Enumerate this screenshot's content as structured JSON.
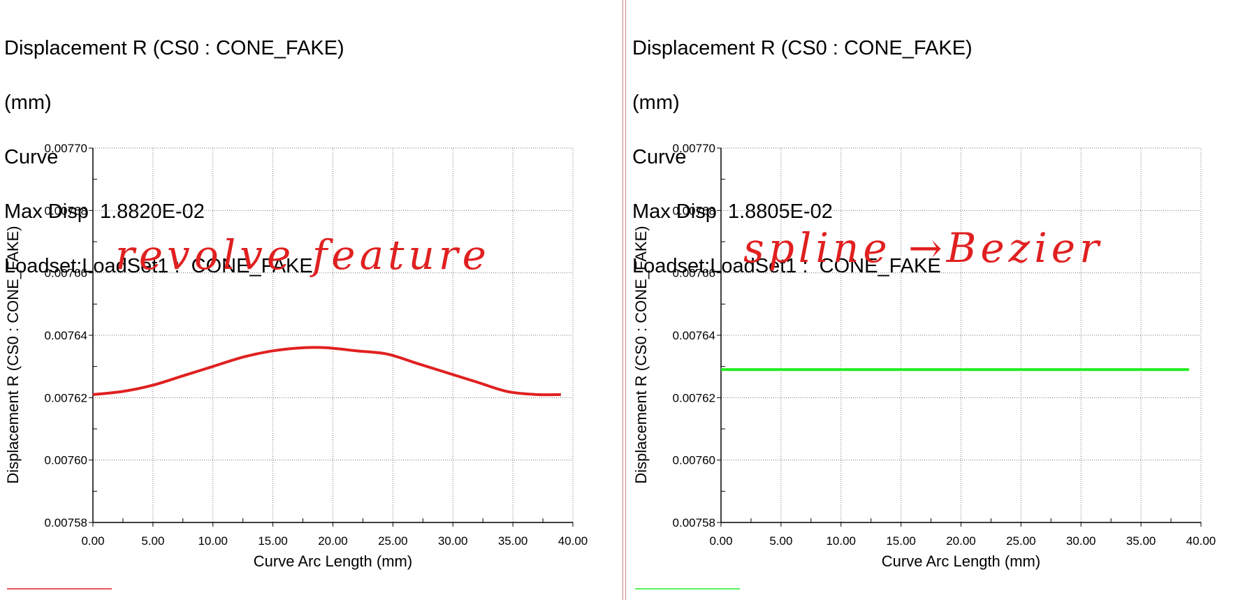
{
  "charts": [
    {
      "header": {
        "line1": "Displacement R (CS0 : CONE_FAKE)",
        "line2": "(mm)",
        "line3": "Curve",
        "line4": "Max Disp  1.8820E-02",
        "line5": "Loadset:LoadSet1 :  CONE_FAKE"
      },
      "annotation": "revolve feature",
      "series_color": "#e02020",
      "legend_swatch_color": "#e02020"
    },
    {
      "header": {
        "line1": "Displacement R (CS0 : CONE_FAKE)",
        "line2": "(mm)",
        "line3": "Curve",
        "line4": "Max Disp  1.8805E-02",
        "line5": "Loadset:LoadSet1 :  CONE_FAKE"
      },
      "annotation": "spline →Bezier",
      "series_color": "#22ee22",
      "legend_swatch_color": "#22ee22"
    }
  ],
  "chart_data": [
    {
      "type": "line",
      "xlabel": "Curve Arc Length (mm)",
      "ylabel": "Displacement R (CS0 : CONE_FAKE)",
      "xlim": [
        0,
        40
      ],
      "ylim": [
        0.00758,
        0.0077
      ],
      "xticks": [
        "0.00",
        "5.00",
        "10.00",
        "15.00",
        "20.00",
        "25.00",
        "30.00",
        "35.00",
        "40.00"
      ],
      "yticks": [
        "0.00758",
        "0.00760",
        "0.00762",
        "0.00764",
        "0.00766",
        "0.00768",
        "0.00770"
      ],
      "grid": true,
      "series": [
        {
          "x": [
            0,
            2.5,
            5,
            7.5,
            10,
            12.5,
            15,
            17.5,
            19.5,
            22,
            24.5,
            27,
            29.5,
            32,
            34.5,
            37,
            39
          ],
          "y": [
            0.007621,
            0.007622,
            0.007624,
            0.007627,
            0.00763,
            0.007633,
            0.007635,
            0.007636,
            0.007636,
            0.007635,
            0.007634,
            0.007631,
            0.007628,
            0.007625,
            0.007622,
            0.007621,
            0.007621
          ]
        }
      ]
    },
    {
      "type": "line",
      "xlabel": "Curve Arc Length (mm)",
      "ylabel": "Displacement R (CS0 : CONE_FAKE)",
      "xlim": [
        0,
        40
      ],
      "ylim": [
        0.00758,
        0.0077
      ],
      "xticks": [
        "0.00",
        "5.00",
        "10.00",
        "15.00",
        "20.00",
        "25.00",
        "30.00",
        "35.00",
        "40.00"
      ],
      "yticks": [
        "0.00758",
        "0.00760",
        "0.00762",
        "0.00764",
        "0.00766",
        "0.00768",
        "0.00770"
      ],
      "grid": true,
      "series": [
        {
          "x": [
            0,
            39
          ],
          "y": [
            0.007629,
            0.007629
          ]
        }
      ]
    }
  ]
}
